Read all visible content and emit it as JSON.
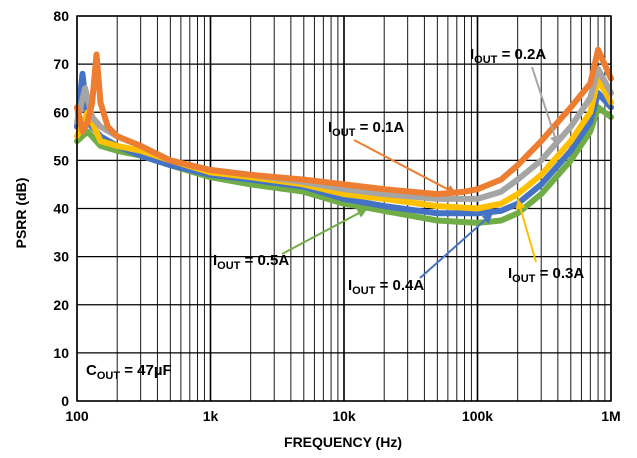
{
  "chart_data": {
    "type": "line",
    "xlabel": "FREQUENCY (Hz)",
    "ylabel": "PSRR (dB)",
    "x_scale": "log",
    "xlim": [
      100,
      1000000
    ],
    "ylim": [
      0,
      80
    ],
    "x_ticks": [
      {
        "value": 100,
        "label": "100"
      },
      {
        "value": 1000,
        "label": "1k"
      },
      {
        "value": 10000,
        "label": "10k"
      },
      {
        "value": 100000,
        "label": "100k"
      },
      {
        "value": 1000000,
        "label": "1M"
      }
    ],
    "y_ticks": [
      0,
      10,
      20,
      30,
      40,
      50,
      60,
      70,
      80
    ],
    "grid": true,
    "series": [
      {
        "name": "IOUT = 0.1A",
        "color": "#ed7d31",
        "points": [
          [
            100,
            61
          ],
          [
            110,
            56
          ],
          [
            120,
            58
          ],
          [
            130,
            62
          ],
          [
            140,
            72
          ],
          [
            150,
            62
          ],
          [
            170,
            57
          ],
          [
            200,
            55
          ],
          [
            300,
            53
          ],
          [
            500,
            50
          ],
          [
            1000,
            48
          ],
          [
            2000,
            47
          ],
          [
            5000,
            46
          ],
          [
            10000,
            45
          ],
          [
            20000,
            44
          ],
          [
            50000,
            43
          ],
          [
            80000,
            43.5
          ],
          [
            100000,
            44
          ],
          [
            150000,
            46
          ],
          [
            200000,
            49
          ],
          [
            300000,
            54
          ],
          [
            500000,
            61
          ],
          [
            700000,
            66
          ],
          [
            800000,
            73
          ],
          [
            1000000,
            67
          ]
        ]
      },
      {
        "name": "IOUT = 0.2A",
        "color": "#a5a5a5",
        "points": [
          [
            100,
            58
          ],
          [
            115,
            65
          ],
          [
            130,
            59
          ],
          [
            150,
            57
          ],
          [
            200,
            55
          ],
          [
            300,
            53
          ],
          [
            500,
            50
          ],
          [
            1000,
            48
          ],
          [
            2000,
            47
          ],
          [
            5000,
            45.5
          ],
          [
            10000,
            44
          ],
          [
            20000,
            43
          ],
          [
            50000,
            42
          ],
          [
            100000,
            42
          ],
          [
            150000,
            43.5
          ],
          [
            200000,
            46
          ],
          [
            300000,
            50
          ],
          [
            500000,
            57
          ],
          [
            700000,
            63
          ],
          [
            800000,
            69
          ],
          [
            1000000,
            64
          ]
        ]
      },
      {
        "name": "IOUT = 0.3A",
        "color": "#ffc000",
        "points": [
          [
            100,
            55
          ],
          [
            120,
            60
          ],
          [
            150,
            54
          ],
          [
            200,
            53
          ],
          [
            300,
            52
          ],
          [
            500,
            50
          ],
          [
            1000,
            47.5
          ],
          [
            2000,
            46.5
          ],
          [
            5000,
            45
          ],
          [
            10000,
            43
          ],
          [
            20000,
            42
          ],
          [
            50000,
            40.5
          ],
          [
            100000,
            40
          ],
          [
            150000,
            41
          ],
          [
            200000,
            43
          ],
          [
            300000,
            47
          ],
          [
            500000,
            54
          ],
          [
            700000,
            60
          ],
          [
            800000,
            67
          ],
          [
            1000000,
            62
          ]
        ]
      },
      {
        "name": "IOUT = 0.4A",
        "color": "#4472c4",
        "points": [
          [
            100,
            57
          ],
          [
            110,
            68
          ],
          [
            120,
            58
          ],
          [
            150,
            55
          ],
          [
            200,
            53
          ],
          [
            300,
            51
          ],
          [
            500,
            49
          ],
          [
            1000,
            47
          ],
          [
            2000,
            46
          ],
          [
            5000,
            44.5
          ],
          [
            10000,
            42
          ],
          [
            20000,
            40.5
          ],
          [
            50000,
            39
          ],
          [
            100000,
            39
          ],
          [
            150000,
            39.5
          ],
          [
            200000,
            41
          ],
          [
            300000,
            45
          ],
          [
            500000,
            52
          ],
          [
            700000,
            58
          ],
          [
            800000,
            64
          ],
          [
            1000000,
            61
          ]
        ]
      },
      {
        "name": "IOUT = 0.5A",
        "color": "#70ad47",
        "points": [
          [
            100,
            54
          ],
          [
            120,
            56
          ],
          [
            150,
            53
          ],
          [
            200,
            52
          ],
          [
            300,
            51
          ],
          [
            500,
            49
          ],
          [
            1000,
            46.5
          ],
          [
            2000,
            45
          ],
          [
            5000,
            43.5
          ],
          [
            10000,
            41
          ],
          [
            20000,
            39.5
          ],
          [
            50000,
            37.5
          ],
          [
            100000,
            37
          ],
          [
            150000,
            37.5
          ],
          [
            200000,
            39
          ],
          [
            300000,
            43
          ],
          [
            500000,
            50
          ],
          [
            700000,
            56
          ],
          [
            800000,
            61
          ],
          [
            1000000,
            59
          ]
        ]
      }
    ],
    "annotations": [
      {
        "main": "I",
        "sub": "OUT",
        "rest": " = 0.1A",
        "series": 0,
        "target": [
          70000,
          43
        ]
      },
      {
        "main": "I",
        "sub": "OUT",
        "rest": " = 0.2A",
        "series": 1,
        "target": [
          400000,
          53
        ]
      },
      {
        "main": "I",
        "sub": "OUT",
        "rest": " = 0.3A",
        "series": 2,
        "target": [
          200000,
          42
        ]
      },
      {
        "main": "I",
        "sub": "OUT",
        "rest": " = 0.4A",
        "series": 3,
        "target": [
          130000,
          39
        ]
      },
      {
        "main": "I",
        "sub": "OUT",
        "rest": " = 0.5A",
        "series": 4,
        "target": [
          15000,
          40
        ]
      },
      {
        "main": "C",
        "sub": "OUT",
        "rest": " = 47µF"
      }
    ]
  }
}
